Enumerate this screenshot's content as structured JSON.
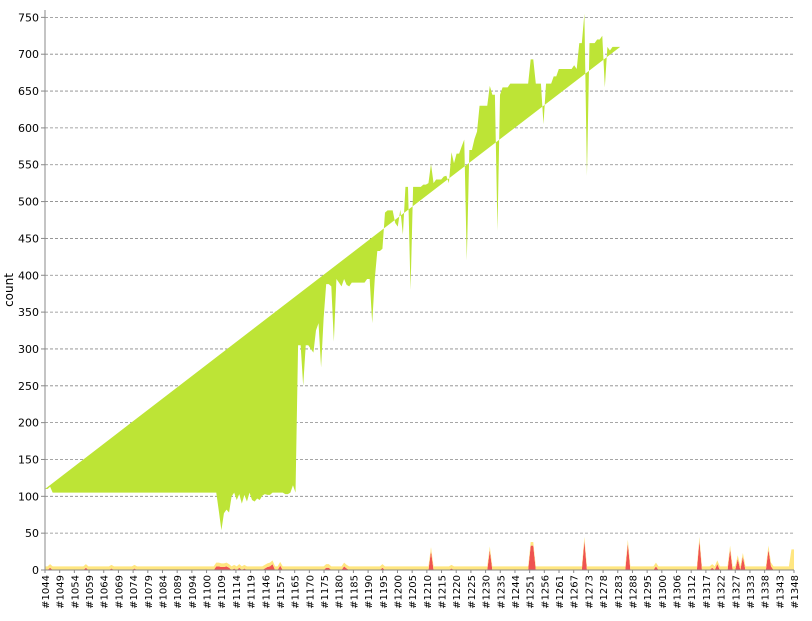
{
  "chart_data": {
    "type": "area",
    "stacked": true,
    "ylabel": "count",
    "xlabel": "",
    "ylim": [
      0,
      760
    ],
    "yticks": [
      0,
      50,
      100,
      150,
      200,
      250,
      300,
      350,
      400,
      450,
      500,
      550,
      600,
      650,
      700,
      750
    ],
    "xtick_labels": [
      "#1044",
      "#1049",
      "#1054",
      "#1059",
      "#1064",
      "#1069",
      "#1074",
      "#1079",
      "#1084",
      "#1089",
      "#1094",
      "#1100",
      "#1109",
      "#1114",
      "#1119",
      "#1146",
      "#1157",
      "#1165",
      "#1170",
      "#1175",
      "#1180",
      "#1185",
      "#1190",
      "#1195",
      "#1200",
      "#1205",
      "#1210",
      "#1215",
      "#1220",
      "#1225",
      "#1230",
      "#1235",
      "#1244",
      "#1251",
      "#1256",
      "#1261",
      "#1267",
      "#1273",
      "#1278",
      "#1283",
      "#1288",
      "#1295",
      "#1300",
      "#1306",
      "#1312",
      "#1317",
      "#1322",
      "#1327",
      "#1333",
      "#1338",
      "#1343",
      "#1348"
    ],
    "grid": true,
    "grid_style": "dashed-horizontal",
    "colors": {
      "pass": "#bde436",
      "fail": "#ef5350",
      "skip": "#ffe680"
    },
    "series": [
      {
        "key": "fail",
        "values": [
          0,
          0,
          3,
          0,
          0,
          0,
          0,
          0,
          0,
          0,
          0,
          0,
          0,
          0,
          0,
          0,
          3,
          0,
          0,
          0,
          0,
          0,
          0,
          0,
          0,
          0,
          2,
          0,
          0,
          0,
          0,
          0,
          0,
          0,
          0,
          2,
          0,
          0,
          0,
          0,
          0,
          0,
          0,
          0,
          0,
          0,
          0,
          0,
          0,
          0,
          0,
          0,
          0,
          0,
          0,
          0,
          0,
          0,
          0,
          0,
          0,
          0,
          0,
          0,
          0,
          0,
          0,
          5,
          5,
          4,
          4,
          5,
          3,
          0,
          2,
          0,
          3,
          0,
          2,
          0,
          0,
          0,
          0,
          0,
          0,
          0,
          2,
          4,
          5,
          8,
          0,
          0,
          6,
          0,
          0,
          0,
          0,
          0,
          0,
          0,
          0,
          0,
          0,
          0,
          0,
          0,
          0,
          0,
          0,
          0,
          3,
          3,
          0,
          0,
          0,
          0,
          0,
          5,
          2,
          0,
          0,
          0,
          0,
          0,
          0,
          0,
          0,
          0,
          0,
          0,
          0,
          0,
          3,
          0,
          0,
          0,
          0,
          0,
          0,
          0,
          0,
          0,
          0,
          0,
          0,
          0,
          0,
          0,
          0,
          0,
          0,
          26,
          0,
          0,
          0,
          0,
          0,
          0,
          0,
          2,
          0,
          0,
          0,
          0,
          0,
          0,
          0,
          0,
          0,
          0,
          0,
          0,
          0,
          0,
          27,
          0,
          0,
          0,
          0,
          0,
          0,
          0,
          0,
          0,
          0,
          0,
          0,
          0,
          0,
          0,
          33,
          33,
          0,
          0,
          0,
          0,
          0,
          0,
          0,
          0,
          0,
          0,
          0,
          0,
          0,
          0,
          0,
          0,
          0,
          0,
          0,
          40,
          0,
          0,
          0,
          0,
          0,
          0,
          0,
          0,
          0,
          0,
          0,
          0,
          0,
          0,
          0,
          0,
          36,
          0,
          0,
          0,
          0,
          0,
          0,
          0,
          0,
          0,
          0,
          5,
          0,
          0,
          0,
          0,
          0,
          0,
          0,
          0,
          0,
          0,
          0,
          0,
          0,
          0,
          0,
          0,
          40,
          0,
          0,
          0,
          0,
          3,
          0,
          8,
          0,
          0,
          0,
          0,
          28,
          0,
          0,
          15,
          0,
          18,
          0,
          0,
          0,
          0,
          0,
          0,
          0,
          0,
          0,
          28,
          5,
          0,
          0,
          0,
          0,
          0,
          0,
          0,
          0,
          0
        ]
      },
      {
        "key": "skip",
        "values": [
          5,
          5,
          5,
          5,
          5,
          5,
          5,
          5,
          5,
          5,
          5,
          5,
          5,
          5,
          5,
          5,
          5,
          5,
          5,
          5,
          5,
          5,
          5,
          5,
          5,
          5,
          5,
          5,
          5,
          5,
          5,
          5,
          5,
          5,
          5,
          5,
          5,
          5,
          5,
          5,
          5,
          5,
          5,
          5,
          5,
          5,
          5,
          5,
          5,
          5,
          5,
          5,
          5,
          5,
          5,
          5,
          5,
          5,
          5,
          5,
          5,
          5,
          5,
          5,
          5,
          5,
          5,
          5,
          5,
          5,
          5,
          5,
          5,
          5,
          5,
          5,
          5,
          5,
          5,
          5,
          5,
          5,
          5,
          5,
          5,
          5,
          5,
          5,
          5,
          5,
          5,
          5,
          5,
          5,
          5,
          5,
          5,
          5,
          5,
          5,
          5,
          5,
          5,
          5,
          5,
          5,
          5,
          5,
          5,
          5,
          5,
          5,
          5,
          5,
          5,
          5,
          5,
          5,
          5,
          5,
          5,
          5,
          5,
          5,
          5,
          5,
          5,
          5,
          5,
          5,
          5,
          5,
          5,
          5,
          5,
          5,
          5,
          5,
          5,
          5,
          5,
          5,
          5,
          5,
          5,
          5,
          5,
          5,
          5,
          5,
          5,
          5,
          5,
          5,
          5,
          5,
          5,
          5,
          5,
          5,
          5,
          5,
          5,
          5,
          5,
          5,
          5,
          5,
          5,
          5,
          5,
          5,
          5,
          5,
          5,
          5,
          5,
          5,
          5,
          5,
          5,
          5,
          5,
          5,
          5,
          5,
          5,
          5,
          5,
          5,
          5,
          5,
          5,
          5,
          5,
          5,
          5,
          5,
          5,
          5,
          5,
          5,
          5,
          5,
          5,
          5,
          5,
          5,
          5,
          5,
          5,
          5,
          5,
          5,
          5,
          5,
          5,
          5,
          5,
          5,
          5,
          5,
          5,
          5,
          5,
          5,
          5,
          5,
          5,
          5,
          5,
          5,
          5,
          5,
          5,
          5,
          5,
          5,
          5,
          5,
          5,
          5,
          5,
          5,
          5,
          5,
          5,
          5,
          5,
          5,
          5,
          5,
          5,
          5,
          5,
          5,
          5,
          5,
          5,
          5,
          5,
          5,
          5,
          5,
          5,
          5,
          5,
          5,
          5,
          5,
          5,
          5,
          5,
          5,
          5,
          5,
          5,
          5,
          5,
          5,
          5,
          5,
          5,
          5,
          5,
          5,
          5,
          5,
          5,
          5,
          5,
          5,
          28,
          28,
          28,
          28,
          28,
          28,
          28,
          28,
          28,
          28,
          28,
          28,
          28,
          28,
          28
        ]
      },
      {
        "key": "pass",
        "values": [
          105,
          105,
          105,
          100,
          100,
          100,
          100,
          100,
          100,
          100,
          100,
          100,
          100,
          100,
          100,
          100,
          97,
          100,
          100,
          100,
          100,
          100,
          100,
          100,
          100,
          100,
          98,
          100,
          100,
          100,
          100,
          100,
          100,
          100,
          100,
          98,
          100,
          100,
          100,
          100,
          100,
          100,
          100,
          100,
          100,
          100,
          100,
          100,
          100,
          100,
          100,
          100,
          100,
          100,
          100,
          100,
          100,
          100,
          100,
          100,
          100,
          100,
          100,
          100,
          100,
          100,
          100,
          95,
          70,
          45,
          68,
          72,
          70,
          95,
          98,
          90,
          95,
          85,
          95,
          88,
          100,
          90,
          88,
          92,
          90,
          96,
          96,
          93,
          92,
          92,
          100,
          100,
          94,
          100,
          98,
          98,
          100,
          110,
          100,
          300,
          300,
          245,
          300,
          300,
          295,
          290,
          320,
          330,
          270,
          337,
          380,
          380,
          380,
          305,
          390,
          385,
          380,
          385,
          380,
          380,
          385,
          385,
          385,
          385,
          385,
          385,
          390,
          390,
          330,
          390,
          428,
          428,
          428,
          480,
          483,
          483,
          483,
          466,
          461,
          484,
          450,
          515,
          515,
          375,
          515,
          515,
          515,
          515,
          518,
          518,
          520,
          520,
          520,
          525,
          525,
          525,
          529,
          530,
          520,
          560,
          547,
          560,
          560,
          570,
          579,
          415,
          565,
          565,
          580,
          590,
          625,
          625,
          625,
          625,
          625,
          640,
          640,
          455,
          640,
          650,
          650,
          650,
          655,
          655,
          655,
          655,
          655,
          655,
          655,
          655,
          655,
          655,
          655,
          655,
          655,
          600,
          655,
          655,
          655,
          665,
          665,
          675,
          675,
          675,
          675,
          675,
          675,
          680,
          675,
          710,
          710,
          710,
          530,
          710,
          710,
          710,
          715,
          715,
          720,
          650,
          705,
          700,
          705,
          705,
          705,
          705
        ]
      }
    ]
  }
}
